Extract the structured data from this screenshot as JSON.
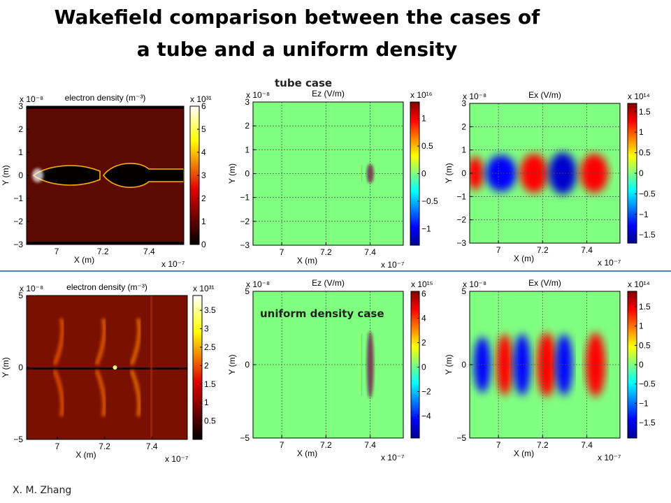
{
  "slide": {
    "title_line1": "Wakefield comparison between the cases of",
    "title_line2": "a tube and a uniform density",
    "tube_label": "tube case",
    "uniform_label": "uniform density case",
    "author": "X. M. Zhang"
  },
  "chart_data": [
    {
      "type": "heatmap",
      "row": "tube",
      "field": "density",
      "title": "electron density (m⁻³)",
      "xlabel": "X (m)",
      "ylabel": "Y (m)",
      "x_exponent": "x 10⁻⁷",
      "y_exponent": "x 10⁻⁸",
      "cb_exponent": "x 10³¹",
      "xticks": [
        "7",
        "7.2",
        "7.4"
      ],
      "xtick_values": [
        7,
        7.2,
        7.4
      ],
      "xlim": [
        6.87,
        7.55
      ],
      "yticks": [
        "3",
        "2",
        "1",
        "0",
        "−1",
        "−2",
        "−3"
      ],
      "ytick_values": [
        3,
        2,
        1,
        0,
        -1,
        -2,
        -3
      ],
      "ylim": [
        -3,
        3
      ],
      "cbticks": [
        "6",
        "5",
        "4",
        "3",
        "2",
        "1",
        "0"
      ],
      "cbtick_values": [
        6,
        5,
        4,
        3,
        2,
        1,
        0
      ],
      "clim": [
        0,
        6
      ],
      "colormap": "hot"
    },
    {
      "type": "heatmap",
      "row": "tube",
      "field": "ez",
      "title": "Ez (V/m)",
      "xlabel": "X (m)",
      "ylabel": "Y (m)",
      "x_exponent": "x 10⁻⁷",
      "y_exponent": "x 10⁻⁸",
      "cb_exponent": "x 10¹⁶",
      "xticks": [
        "7",
        "7.2",
        "7.4"
      ],
      "xtick_values": [
        7,
        7.2,
        7.4
      ],
      "xlim": [
        6.87,
        7.55
      ],
      "yticks": [
        "3",
        "2",
        "1",
        "0",
        "−1",
        "−2",
        "−3"
      ],
      "ytick_values": [
        3,
        2,
        1,
        0,
        -1,
        -2,
        -3
      ],
      "ylim": [
        -3,
        3
      ],
      "cbticks": [
        "1",
        "0.5",
        "0",
        "−0.5",
        "−1"
      ],
      "cbtick_values": [
        1,
        0.5,
        0,
        -0.5,
        -1
      ],
      "clim": [
        -1.3,
        1.3
      ],
      "colormap": "jet",
      "grid": true
    },
    {
      "type": "heatmap",
      "row": "tube",
      "field": "ex",
      "title": "Ex (V/m)",
      "xlabel": "X (m)",
      "ylabel": "Y (m)",
      "x_exponent": "x 10⁻⁷",
      "y_exponent": "x 10⁻⁸",
      "cb_exponent": "x 10¹⁴",
      "xticks": [
        "7",
        "7.2",
        "7.4"
      ],
      "xtick_values": [
        7,
        7.2,
        7.4
      ],
      "xlim": [
        6.87,
        7.55
      ],
      "yticks": [
        "3",
        "2",
        "1",
        "0",
        "−1",
        "−2",
        "−3"
      ],
      "ytick_values": [
        3,
        2,
        1,
        0,
        -1,
        -2,
        -3
      ],
      "ylim": [
        -3,
        3
      ],
      "cbticks": [
        "1.5",
        "1",
        "0.5",
        "0",
        "−0.5",
        "−1",
        "−1.5"
      ],
      "cbtick_values": [
        1.5,
        1,
        0.5,
        0,
        -0.5,
        -1,
        -1.5
      ],
      "clim": [
        -1.7,
        1.7
      ],
      "colormap": "jet",
      "grid": true
    },
    {
      "type": "heatmap",
      "row": "uniform",
      "field": "density",
      "title": "electron density (m⁻³)",
      "xlabel": "X (m)",
      "ylabel": "Y (m)",
      "x_exponent": "x 10⁻⁷",
      "y_exponent": "x 10⁻⁸",
      "cb_exponent": "x 10³¹",
      "xticks": [
        "7",
        "7.2",
        "7.4"
      ],
      "xtick_values": [
        7,
        7.2,
        7.4
      ],
      "xlim": [
        6.87,
        7.55
      ],
      "yticks": [
        "5",
        "0",
        "−5"
      ],
      "ytick_values": [
        5,
        0,
        -5
      ],
      "ylim": [
        -5,
        5
      ],
      "cbticks": [
        "3.5",
        "3",
        "2.5",
        "2",
        "1.5",
        "1",
        "0.5"
      ],
      "cbtick_values": [
        3.5,
        3,
        2.5,
        2,
        1.5,
        1,
        0.5
      ],
      "clim": [
        0,
        3.9
      ],
      "colormap": "hot"
    },
    {
      "type": "heatmap",
      "row": "uniform",
      "field": "ez",
      "title": "Ez (V/m)",
      "xlabel": "X (m)",
      "ylabel": "Y (m)",
      "x_exponent": "x 10⁻⁷",
      "y_exponent": "x 10⁻⁸",
      "cb_exponent": "x 10¹⁵",
      "xticks": [
        "7",
        "7.2",
        "7.4"
      ],
      "xtick_values": [
        7,
        7.2,
        7.4
      ],
      "xlim": [
        6.87,
        7.55
      ],
      "yticks": [
        "5",
        "0",
        "−5"
      ],
      "ytick_values": [
        5,
        0,
        -5
      ],
      "ylim": [
        -5,
        5
      ],
      "cbticks": [
        "6",
        "4",
        "2",
        "0",
        "−2",
        "−4"
      ],
      "cbtick_values": [
        6,
        4,
        2,
        0,
        -2,
        -4
      ],
      "clim": [
        -5.8,
        6.2
      ],
      "colormap": "jet",
      "grid": true
    },
    {
      "type": "heatmap",
      "row": "uniform",
      "field": "ex",
      "title": "Ex (V/m)",
      "xlabel": "X (m)",
      "ylabel": "Y (m)",
      "x_exponent": "x 10⁻⁷",
      "y_exponent": "x 10⁻⁸",
      "cb_exponent": "x 10¹⁴",
      "xticks": [
        "7",
        "7.2",
        "7.4"
      ],
      "xtick_values": [
        7,
        7.2,
        7.4
      ],
      "xlim": [
        6.87,
        7.55
      ],
      "yticks": [
        "5",
        "0",
        "−5"
      ],
      "ytick_values": [
        5,
        0,
        -5
      ],
      "ylim": [
        -5,
        5
      ],
      "cbticks": [
        "1.5",
        "1",
        "0.5",
        "0",
        "−0.5",
        "−1",
        "−1.5"
      ],
      "cbtick_values": [
        1.5,
        1,
        0.5,
        0,
        -0.5,
        -1,
        -1.5
      ],
      "clim": [
        -1.9,
        1.9
      ],
      "colormap": "jet",
      "grid": true
    }
  ]
}
